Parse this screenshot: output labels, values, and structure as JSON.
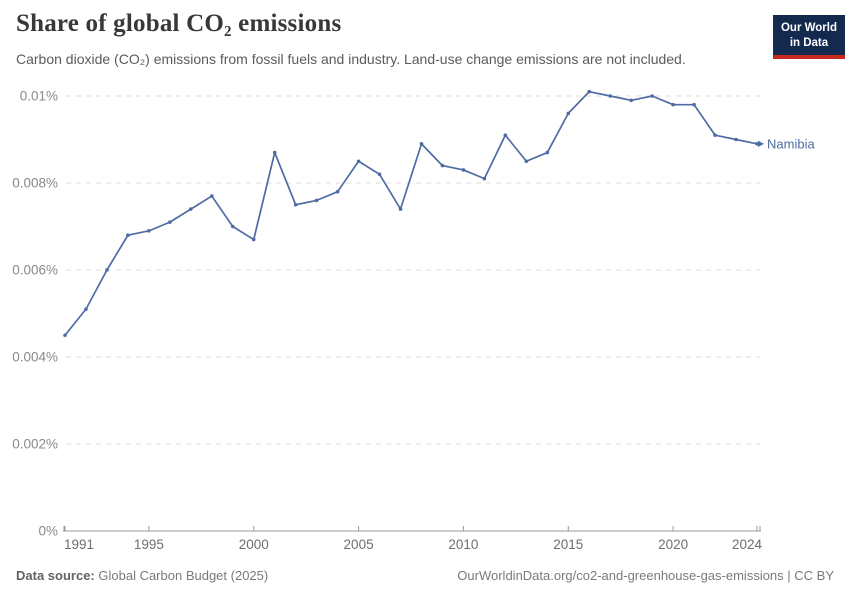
{
  "header": {
    "title": "Share of global CO₂ emissions",
    "subtitle": "Carbon dioxide (CO₂) emissions from fossil fuels and industry. Land-use change emissions are not included.",
    "logo": {
      "line1": "Our World",
      "line2": "in Data"
    }
  },
  "chart_data": {
    "type": "line",
    "title": "Share of global CO₂ emissions",
    "unit": "%",
    "grid": "horizontal-dashed",
    "legend_position": "end-of-line",
    "ylim": [
      0,
      0.0105
    ],
    "x": [
      1991,
      1992,
      1993,
      1994,
      1995,
      1996,
      1997,
      1998,
      1999,
      2000,
      2001,
      2002,
      2003,
      2004,
      2005,
      2006,
      2007,
      2008,
      2009,
      2010,
      2011,
      2012,
      2013,
      2014,
      2015,
      2016,
      2017,
      2018,
      2019,
      2020,
      2021,
      2022,
      2023,
      2024
    ],
    "series": [
      {
        "name": "Namibia",
        "color": "#4e6ca3",
        "values": [
          0.0045,
          0.0051,
          0.006,
          0.0068,
          0.0069,
          0.0071,
          0.0074,
          0.0077,
          0.007,
          0.0067,
          0.0087,
          0.0075,
          0.0076,
          0.0078,
          0.0085,
          0.0082,
          0.0074,
          0.0089,
          0.0084,
          0.0083,
          0.0081,
          0.0091,
          0.0085,
          0.0087,
          0.0096,
          0.0101,
          0.01,
          0.0099,
          0.01,
          0.0098,
          0.0098,
          0.0091,
          0.009,
          0.0089
        ]
      }
    ],
    "yticks": [
      {
        "value": 0.01,
        "label": "0.01%"
      },
      {
        "value": 0.008,
        "label": "0.008%"
      },
      {
        "value": 0.006,
        "label": "0.006%"
      },
      {
        "value": 0.004,
        "label": "0.004%"
      },
      {
        "value": 0.002,
        "label": "0.002%"
      },
      {
        "value": 0,
        "label": "0%"
      }
    ],
    "xticks": [
      {
        "value": 1991,
        "label": "1991"
      },
      {
        "value": 1995,
        "label": "1995"
      },
      {
        "value": 2000,
        "label": "2000"
      },
      {
        "value": 2005,
        "label": "2005"
      },
      {
        "value": 2010,
        "label": "2010"
      },
      {
        "value": 2015,
        "label": "2015"
      },
      {
        "value": 2020,
        "label": "2020"
      },
      {
        "value": 2024,
        "label": "2024"
      }
    ]
  },
  "footer": {
    "source_label": "Data source:",
    "source_value": "Global Carbon Budget (2025)",
    "link": "OurWorldinData.org/co2-and-greenhouse-gas-emissions | CC BY"
  },
  "colors": {
    "line": "#4e6ca3",
    "title": "#383838",
    "subtitle": "#5b5b5b",
    "axis_label": "#8a8a8a",
    "x_label": "#6e6e6e",
    "gridline": "#dcdcdc",
    "axis_line": "#999999",
    "logo_bg": "#13294e",
    "logo_accent": "#c5281c",
    "footer_text": "#7a7a7a"
  }
}
